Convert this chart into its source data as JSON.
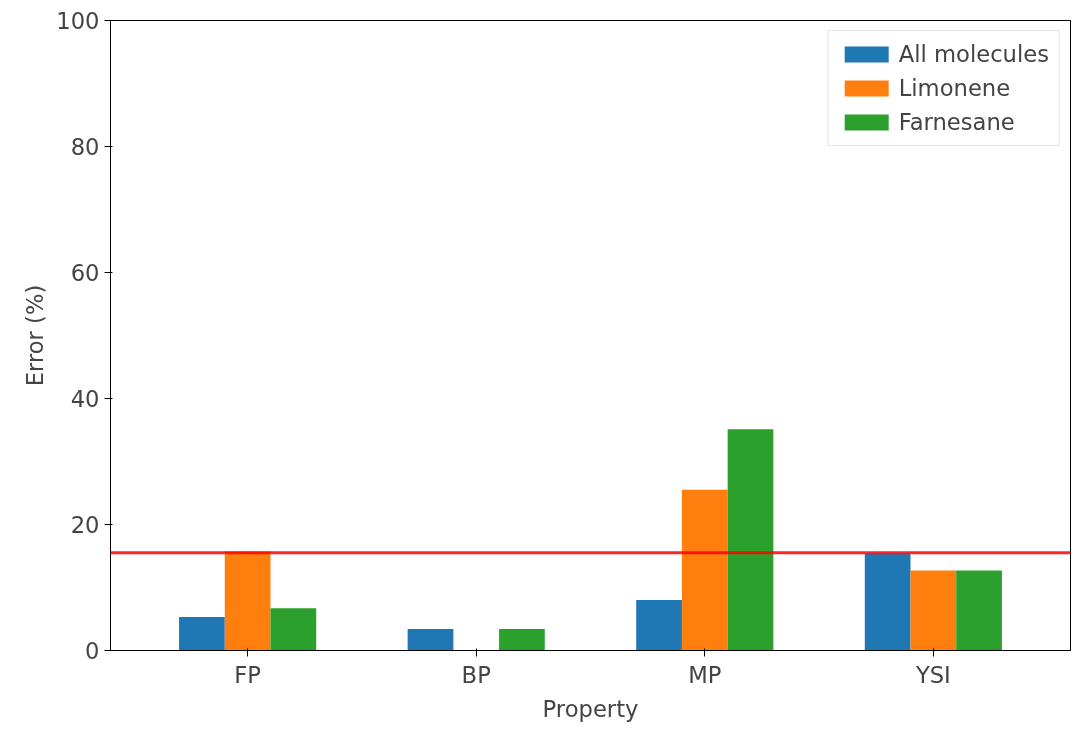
{
  "chart_data": {
    "type": "bar",
    "xlabel": "Property",
    "ylabel": "Error (%)",
    "categories": [
      "FP",
      "BP",
      "MP",
      "YSI"
    ],
    "series": [
      {
        "name": "All molecules",
        "color": "#1f77b4",
        "values": [
          5.3,
          3.4,
          8.0,
          15.4
        ]
      },
      {
        "name": "Limonene",
        "color": "#ff7f0e",
        "values": [
          15.7,
          0,
          25.5,
          12.7
        ]
      },
      {
        "name": "Farnesane",
        "color": "#2ca02c",
        "values": [
          6.7,
          3.4,
          35.1,
          12.7
        ]
      }
    ],
    "ylim": [
      0,
      100
    ],
    "yticks": [
      0,
      20,
      40,
      60,
      80,
      100
    ],
    "grid": false,
    "legend": "top right",
    "ref_lines": [
      {
        "axis": "y",
        "value": 15.5,
        "color": "#ff0000"
      }
    ]
  }
}
